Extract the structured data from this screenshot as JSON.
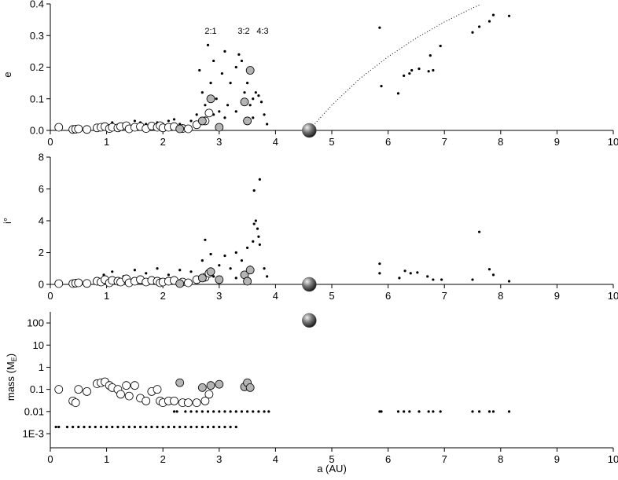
{
  "chart_data": [
    {
      "type": "scatter",
      "y_label": "e",
      "annotations": [
        "2:1",
        "3:2",
        "4:3"
      ],
      "xlim": [
        0,
        10
      ],
      "xticks": [
        0,
        1,
        2,
        3,
        4,
        5,
        6,
        7,
        8,
        9,
        10
      ],
      "ylim": [
        0,
        0.4
      ],
      "yticks": [
        {
          "value": 0,
          "label": "0.0"
        },
        0.1,
        0.2,
        0.3,
        0.4
      ],
      "series": [
        {
          "marker": "dot",
          "color": "#000000",
          "x": [
            0.95,
            1.1,
            1.3,
            1.5,
            1.7,
            1.9,
            2.1,
            2.3,
            2.5,
            2.6,
            2.65,
            2.7,
            2.75,
            2.8,
            2.85,
            2.9,
            2.95,
            3.0,
            3.05,
            3.1,
            3.15,
            3.2,
            3.3,
            3.35,
            3.4,
            3.45,
            3.5,
            3.55,
            3.6,
            3.65,
            3.7,
            3.75,
            3.8,
            3.85,
            2.75,
            2.9,
            3.1,
            3.3,
            3.6,
            1.2,
            1.6,
            2.0,
            2.2,
            5.85,
            5.88,
            6.18,
            6.28,
            6.38,
            6.42,
            6.55,
            6.72,
            6.75,
            6.8,
            6.93,
            7.5,
            7.62,
            7.8,
            7.87,
            8.15
          ],
          "values": [
            0.02,
            0.025,
            0.02,
            0.03,
            0.02,
            0.025,
            0.03,
            0.02,
            0.03,
            0.05,
            0.19,
            0.12,
            0.08,
            0.27,
            0.15,
            0.22,
            0.1,
            0.06,
            0.18,
            0.25,
            0.08,
            0.15,
            0.2,
            0.24,
            0.22,
            0.12,
            0.15,
            0.08,
            0.1,
            0.12,
            0.11,
            0.09,
            0.05,
            0.02,
            0.04,
            0.05,
            0.04,
            0.06,
            0.04,
            0.015,
            0.025,
            0.02,
            0.035,
            0.325,
            0.14,
            0.117,
            0.173,
            0.18,
            0.19,
            0.195,
            0.187,
            0.237,
            0.19,
            0.267,
            0.31,
            0.328,
            0.345,
            0.365,
            0.362
          ]
        },
        {
          "marker": "circle",
          "color": "#ffffff",
          "x": [
            0.15,
            0.4,
            0.45,
            0.5,
            0.65,
            0.83,
            0.9,
            0.97,
            1.05,
            1.1,
            1.2,
            1.25,
            1.35,
            1.4,
            1.5,
            1.6,
            1.7,
            1.8,
            1.9,
            1.95,
            2.0,
            2.1,
            2.2,
            2.35,
            2.45,
            2.6,
            2.75,
            2.82
          ],
          "values": [
            0.01,
            0.003,
            0.004,
            0.005,
            0.003,
            0.008,
            0.01,
            0.012,
            0.006,
            0.01,
            0.008,
            0.012,
            0.015,
            0.005,
            0.01,
            0.012,
            0.006,
            0.014,
            0.01,
            0.015,
            0.008,
            0.01,
            0.012,
            0.006,
            0.005,
            0.018,
            0.03,
            0.055
          ]
        },
        {
          "marker": "circle",
          "color": "#b4b4b4",
          "x": [
            2.3,
            2.7,
            2.85,
            3.0,
            3.45,
            3.5,
            3.55
          ],
          "values": [
            0.005,
            0.03,
            0.1,
            0.01,
            0.09,
            0.03,
            0.19
          ]
        },
        {
          "marker": "sphere",
          "color": "#555555",
          "x": [
            4.6
          ],
          "values": [
            0
          ]
        },
        {
          "marker": "dotted-line",
          "color": "#000000",
          "x": [
            4.7,
            5,
            5.5,
            6,
            6.5,
            7,
            7.5,
            7.65
          ],
          "values": [
            0.021,
            0.08,
            0.164,
            0.233,
            0.292,
            0.343,
            0.387,
            0.399
          ]
        }
      ]
    },
    {
      "type": "scatter",
      "y_label": "i°",
      "xlim": [
        0,
        10
      ],
      "xticks": [
        0,
        1,
        2,
        3,
        4,
        5,
        6,
        7,
        8,
        9,
        10
      ],
      "ylim": [
        0,
        8
      ],
      "yticks": [
        0,
        2,
        4,
        6,
        8
      ],
      "series": [
        {
          "marker": "dot",
          "color": "#000000",
          "x": [
            0.95,
            1.1,
            1.3,
            1.5,
            1.7,
            1.9,
            2.1,
            2.3,
            2.5,
            2.7,
            2.75,
            2.85,
            3.0,
            3.1,
            3.2,
            3.3,
            3.4,
            3.5,
            3.55,
            3.6,
            3.62,
            3.65,
            3.68,
            3.7,
            3.72,
            3.62,
            3.72,
            3.8,
            3.85,
            1.0,
            1.4,
            2.0,
            2.6,
            2.9,
            3.3,
            5.85,
            5.85,
            6.2,
            6.3,
            6.4,
            6.52,
            6.7,
            6.8,
            6.95,
            7.5,
            7.62,
            7.8,
            7.87,
            8.15
          ],
          "values": [
            0.6,
            0.8,
            0.5,
            0.9,
            0.7,
            1.0,
            0.6,
            0.9,
            0.8,
            1.5,
            2.8,
            1.9,
            1.2,
            1.8,
            1.0,
            2.0,
            1.5,
            2.3,
            1.1,
            2.7,
            3.8,
            4.0,
            3.5,
            3.0,
            2.5,
            5.9,
            6.6,
            1.0,
            0.5,
            0.3,
            0.4,
            0.3,
            0.4,
            0.5,
            0.4,
            1.3,
            0.7,
            0.4,
            0.85,
            0.7,
            0.75,
            0.5,
            0.3,
            0.3,
            0.3,
            3.3,
            0.95,
            0.6,
            0.2
          ]
        },
        {
          "marker": "circle",
          "color": "#ffffff",
          "x": [
            0.15,
            0.4,
            0.45,
            0.5,
            0.65,
            0.83,
            0.9,
            0.97,
            1.05,
            1.1,
            1.2,
            1.25,
            1.35,
            1.4,
            1.5,
            1.6,
            1.7,
            1.8,
            1.9,
            1.95,
            2.0,
            2.1,
            2.2,
            2.35,
            2.45,
            2.6,
            2.75,
            2.82
          ],
          "values": [
            0.05,
            0.05,
            0.08,
            0.1,
            0.06,
            0.2,
            0.15,
            0.3,
            0.1,
            0.25,
            0.2,
            0.15,
            0.35,
            0.1,
            0.2,
            0.3,
            0.15,
            0.25,
            0.2,
            0.1,
            0.15,
            0.2,
            0.25,
            0.15,
            0.1,
            0.3,
            0.45,
            0.7
          ]
        },
        {
          "marker": "circle",
          "color": "#b4b4b4",
          "x": [
            2.3,
            2.7,
            2.85,
            3.0,
            3.45,
            3.5,
            3.55
          ],
          "values": [
            0.05,
            0.4,
            0.8,
            0.3,
            0.6,
            0.2,
            0.9
          ]
        },
        {
          "marker": "sphere",
          "color": "#555555",
          "x": [
            4.6
          ],
          "values": [
            0
          ]
        }
      ]
    },
    {
      "type": "scatter",
      "y_label": [
        "mass (M",
        "E",
        ")"
      ],
      "x_label": "a (AU)",
      "log_y": true,
      "xlim": [
        0,
        10
      ],
      "xticks": [
        0,
        1,
        2,
        3,
        4,
        5,
        6,
        7,
        8,
        9,
        10
      ],
      "ylim": [
        0.00023,
        316
      ],
      "yticks": [
        {
          "value": 0.001,
          "label": "1E-3"
        },
        0.01,
        0.1,
        1,
        10,
        100
      ],
      "series": [
        {
          "marker": "dot",
          "color": "#000000",
          "x": [
            2.2,
            2.25,
            2.4,
            2.5,
            2.6,
            2.7,
            2.8,
            2.9,
            3.0,
            3.1,
            3.2,
            3.3,
            3.4,
            3.5,
            3.6,
            3.7,
            3.8,
            3.88,
            5.85,
            5.88,
            6.18,
            6.28,
            6.38,
            6.55,
            6.72,
            6.8,
            6.93,
            7.5,
            7.62,
            7.8,
            7.87,
            8.15
          ],
          "values": [
            0.01,
            0.01,
            0.01,
            0.01,
            0.01,
            0.01,
            0.01,
            0.01,
            0.01,
            0.01,
            0.01,
            0.01,
            0.01,
            0.01,
            0.01,
            0.01,
            0.01,
            0.01,
            0.01,
            0.01,
            0.01,
            0.01,
            0.01,
            0.01,
            0.01,
            0.01,
            0.01,
            0.01,
            0.01,
            0.01,
            0.01,
            0.01
          ]
        },
        {
          "marker": "dot",
          "color": "#000000",
          "x": [
            0.1,
            0.15,
            0.3,
            0.4,
            0.5,
            0.6,
            0.7,
            0.8,
            0.9,
            1.0,
            1.1,
            1.2,
            1.3,
            1.4,
            1.5,
            1.6,
            1.7,
            1.8,
            1.9,
            2.0,
            2.1,
            2.2,
            2.3,
            2.4,
            2.5,
            2.6,
            2.7,
            2.8,
            2.9,
            3.0,
            3.1,
            3.2,
            3.3
          ],
          "values": [
            0.002,
            0.002,
            0.002,
            0.002,
            0.002,
            0.002,
            0.002,
            0.002,
            0.002,
            0.002,
            0.002,
            0.002,
            0.002,
            0.002,
            0.002,
            0.002,
            0.002,
            0.002,
            0.002,
            0.002,
            0.002,
            0.002,
            0.002,
            0.002,
            0.002,
            0.002,
            0.002,
            0.002,
            0.002,
            0.002,
            0.002,
            0.002,
            0.002
          ]
        },
        {
          "marker": "circle",
          "color": "#ffffff",
          "x": [
            0.15,
            0.4,
            0.45,
            0.5,
            0.65,
            0.83,
            0.9,
            0.97,
            1.05,
            1.1,
            1.2,
            1.25,
            1.35,
            1.4,
            1.5,
            1.6,
            1.7,
            1.8,
            1.9,
            1.95,
            2.0,
            2.1,
            2.2,
            2.35,
            2.45,
            2.6,
            2.75,
            2.82
          ],
          "values": [
            0.1,
            0.03,
            0.025,
            0.1,
            0.08,
            0.18,
            0.2,
            0.22,
            0.15,
            0.12,
            0.1,
            0.06,
            0.15,
            0.05,
            0.15,
            0.04,
            0.03,
            0.08,
            0.1,
            0.03,
            0.025,
            0.03,
            0.03,
            0.025,
            0.025,
            0.025,
            0.03,
            0.06
          ]
        },
        {
          "marker": "circle",
          "color": "#b4b4b4",
          "x": [
            2.3,
            2.7,
            2.85,
            3.0,
            3.45,
            3.5,
            3.55
          ],
          "values": [
            0.2,
            0.12,
            0.15,
            0.17,
            0.13,
            0.2,
            0.12
          ]
        },
        {
          "marker": "sphere",
          "color": "#555555",
          "x": [
            4.6
          ],
          "values": [
            130
          ]
        }
      ]
    }
  ]
}
